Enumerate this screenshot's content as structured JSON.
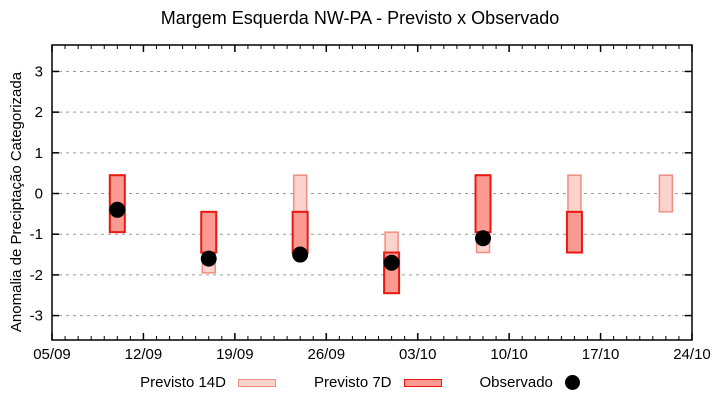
{
  "chart_data": {
    "type": "candlestick",
    "title": "Margem Esquerda NW-PA - Previsto x Observado",
    "xlabel": "",
    "ylabel": "Anomalia de Preciptação Categorizada",
    "x_tick_labels": [
      "05/09",
      "12/09",
      "19/09",
      "26/09",
      "03/10",
      "10/10",
      "17/10",
      "24/10"
    ],
    "x_tick_days": [
      0,
      7,
      14,
      21,
      28,
      35,
      42,
      49
    ],
    "x_minor_step_days": 1,
    "xlim_days": [
      0,
      49
    ],
    "y_ticks": [
      3,
      2,
      1,
      0,
      -1,
      -2,
      -3
    ],
    "ylim": [
      -3.6,
      3.65
    ],
    "grid": "horizontal-dashed",
    "legend_position": "bottom-center",
    "series": [
      {
        "name": "Previsto 14D",
        "type": "box"
      },
      {
        "name": "Previsto 7D",
        "type": "box"
      },
      {
        "name": "Observado",
        "type": "point"
      }
    ],
    "points": [
      {
        "date": "10/09",
        "day": 5,
        "previsto14": [
          -0.95,
          0.45
        ],
        "previsto7": [
          -0.95,
          0.45
        ],
        "observado": -0.4
      },
      {
        "date": "17/09",
        "day": 12,
        "previsto14": [
          -1.95,
          -0.45
        ],
        "previsto7": [
          -1.45,
          -0.45
        ],
        "observado": -1.6
      },
      {
        "date": "24/09",
        "day": 19,
        "previsto14": [
          -0.45,
          0.45
        ],
        "previsto7": [
          -1.45,
          -0.45
        ],
        "observado": -1.5
      },
      {
        "date": "01/10",
        "day": 26,
        "previsto14": [
          -1.95,
          -0.95
        ],
        "previsto7": [
          -2.45,
          -1.45
        ],
        "observado": -1.7
      },
      {
        "date": "08/10",
        "day": 33,
        "previsto14": [
          -1.45,
          0.45
        ],
        "previsto7": [
          -0.95,
          0.45
        ],
        "observado": -1.1
      },
      {
        "date": "15/10",
        "day": 40,
        "previsto14": [
          -0.45,
          0.45
        ],
        "previsto7": [
          -1.45,
          -0.45
        ],
        "observado": null
      },
      {
        "date": "22/10",
        "day": 47,
        "previsto14": [
          -0.45,
          0.45
        ],
        "previsto7": null,
        "observado": null
      }
    ],
    "legend": {
      "previsto14_label": "Previsto 14D",
      "previsto7_label": "Previsto 7D",
      "observado_label": "Observado"
    },
    "colors": {
      "previsto14_fill": "#fbd3cd",
      "previsto14_border": "#ef8e82",
      "previsto7_fill": "#fa9a93",
      "previsto7_border": "#e9190f",
      "observado": "#000000",
      "grid": "#9a9a9a",
      "axis": "#000000"
    }
  }
}
